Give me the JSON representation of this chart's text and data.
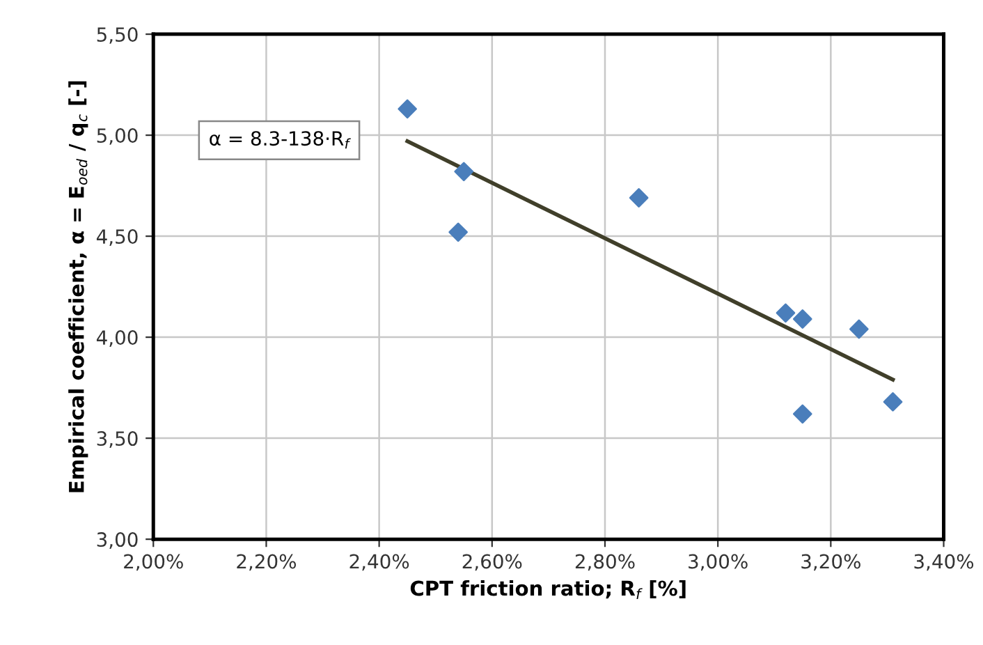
{
  "chart_data": {
    "type": "scatter",
    "xlabel": "CPT friction ratio; R$_{f}$ [%]",
    "ylabel": "Empirical coefficient, α = E$_{oed}$ / q$_{c}$ [-]",
    "annotations": [
      "α = 8.3-138·R$_{f}$"
    ],
    "series": [
      {
        "color": "#4a7ebb",
        "marker": "diamond",
        "x": [
          2.45,
          2.55,
          2.54,
          2.86,
          3.12,
          3.15,
          3.25,
          3.15,
          3.31
        ],
        "values": [
          5.13,
          4.82,
          4.52,
          4.69,
          4.12,
          4.09,
          4.04,
          3.62,
          3.68
        ]
      },
      {
        "type": "line",
        "color": "#403f2a",
        "marker": "none",
        "line_style": "solid",
        "x": [
          2.45,
          3.31
        ],
        "values": [
          4.97,
          3.79
        ]
      }
    ],
    "xlim": [
      2.0,
      3.4
    ],
    "xticks": [
      {
        "value": 2.0,
        "label": "2,00%"
      },
      {
        "value": 2.2,
        "label": "2,20%"
      },
      {
        "value": 2.4,
        "label": "2,40%"
      },
      {
        "value": 2.6,
        "label": "2,60%"
      },
      {
        "value": 2.8,
        "label": "2,80%"
      },
      {
        "value": 3.0,
        "label": "3,00%"
      },
      {
        "value": 3.2,
        "label": "3,20%"
      },
      {
        "value": 3.4,
        "label": "3,40%"
      }
    ],
    "ylim": [
      3.0,
      5.5
    ],
    "yticks": [
      {
        "value": 3.0,
        "label": "3,00"
      },
      {
        "value": 3.5,
        "label": "3,50"
      },
      {
        "value": 4.0,
        "label": "4,00"
      },
      {
        "value": 4.5,
        "label": "4,50"
      },
      {
        "value": 5.0,
        "label": "5,00"
      },
      {
        "value": 5.5,
        "label": "5,50"
      }
    ],
    "grid": true,
    "legend": false
  }
}
